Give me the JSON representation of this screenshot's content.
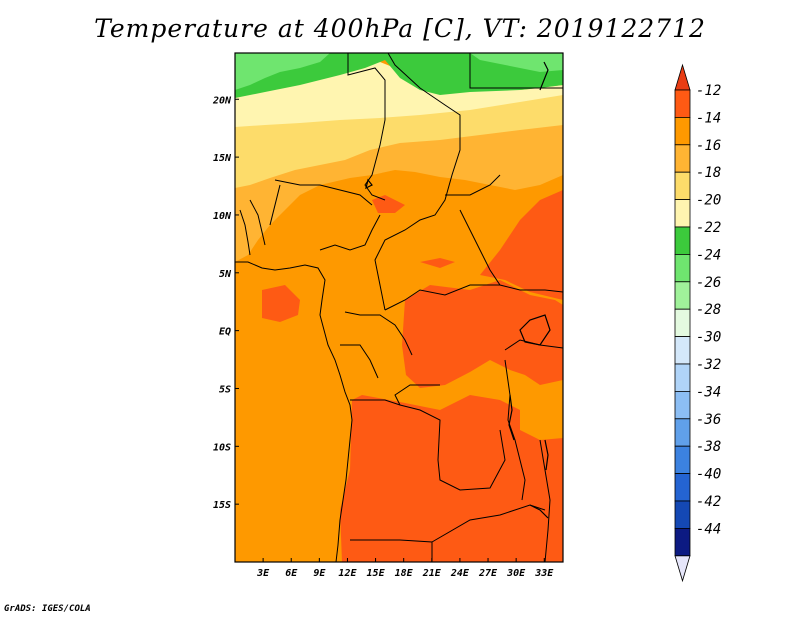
{
  "title": "Temperature at 400hPa [C], VT: 2019122712",
  "credit": "GrADS: IGES/COLA",
  "map": {
    "lon_range": [
      0,
      35
    ],
    "lat_range": [
      -20,
      24
    ],
    "x_ticks": [
      "3E",
      "6E",
      "9E",
      "12E",
      "15E",
      "18E",
      "21E",
      "24E",
      "27E",
      "30E",
      "33E"
    ],
    "x_tick_values": [
      3,
      6,
      9,
      12,
      15,
      18,
      21,
      24,
      27,
      30,
      33
    ],
    "y_ticks": [
      "20N",
      "15N",
      "10N",
      "5N",
      "EQ",
      "5S",
      "10S",
      "15S"
    ],
    "y_tick_values": [
      20,
      15,
      10,
      5,
      0,
      -5,
      -10,
      -15
    ]
  },
  "colorbar": {
    "labels": [
      "-12",
      "-14",
      "-16",
      "-18",
      "-20",
      "-22",
      "-24",
      "-26",
      "-28",
      "-30",
      "-32",
      "-34",
      "-36",
      "-38",
      "-40",
      "-42",
      "-44"
    ],
    "colors": [
      "#fe5a14",
      "#fe9900",
      "#ffb433",
      "#fddc6a",
      "#fff5b0",
      "#3cca3c",
      "#6fe56f",
      "#a0f29a",
      "#e4fae0",
      "#d4e8fa",
      "#b0d4f8",
      "#8cbef4",
      "#60a0ea",
      "#3c82e0",
      "#2464d2",
      "#1448b4",
      "#0c1a82"
    ],
    "top_arrow_color": "#e83c14",
    "bottom_arrow_color": "#e6e6fa"
  }
}
